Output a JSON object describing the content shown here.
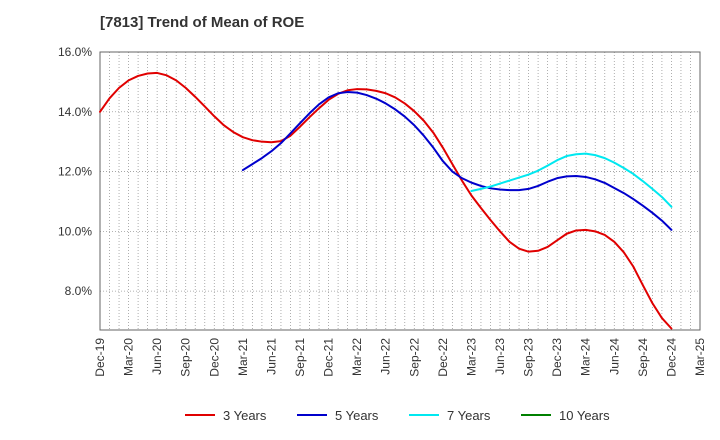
{
  "chart_data": {
    "type": "line",
    "title": "[7813]  Trend of Mean of ROE",
    "xlabel": "",
    "ylabel": "",
    "y_unit": "%",
    "ylim": [
      6.7,
      16.0
    ],
    "y_ticks": [
      8.0,
      10.0,
      12.0,
      14.0,
      16.0
    ],
    "y_tick_labels": [
      "8.0%",
      "10.0%",
      "12.0%",
      "14.0%",
      "16.0%"
    ],
    "grid": "dotted",
    "legend_position": "bottom",
    "categories": [
      "Dec-19",
      "Mar-20",
      "Jun-20",
      "Sep-20",
      "Dec-20",
      "Mar-21",
      "Jun-21",
      "Sep-21",
      "Dec-21",
      "Mar-22",
      "Jun-22",
      "Sep-22",
      "Dec-22",
      "Mar-23",
      "Jun-23",
      "Sep-23",
      "Dec-23",
      "Mar-24",
      "Jun-24",
      "Sep-24",
      "Dec-24",
      "Mar-25"
    ],
    "series": [
      {
        "name": "3 Years",
        "color": "#e00000",
        "x": [
          "Dec-19",
          "Jan-20",
          "Feb-20",
          "Mar-20",
          "Apr-20",
          "May-20",
          "Jun-20",
          "Jul-20",
          "Aug-20",
          "Sep-20",
          "Oct-20",
          "Nov-20",
          "Dec-20",
          "Jan-21",
          "Feb-21",
          "Mar-21",
          "Apr-21",
          "May-21",
          "Jun-21",
          "Jul-21",
          "Aug-21",
          "Sep-21",
          "Oct-21",
          "Nov-21",
          "Dec-21",
          "Jan-22",
          "Feb-22",
          "Mar-22",
          "Apr-22",
          "May-22",
          "Jun-22",
          "Jul-22",
          "Aug-22",
          "Sep-22",
          "Oct-22",
          "Nov-22",
          "Dec-22",
          "Jan-23",
          "Feb-23",
          "Mar-23",
          "Apr-23",
          "May-23",
          "Jun-23",
          "Jul-23",
          "Aug-23",
          "Sep-23",
          "Oct-23",
          "Nov-23",
          "Dec-23",
          "Jan-24",
          "Feb-24",
          "Mar-24",
          "Apr-24",
          "May-24",
          "Jun-24",
          "Jul-24",
          "Aug-24",
          "Sep-24",
          "Oct-24",
          "Nov-24",
          "Dec-24"
        ],
        "values": [
          14.0,
          14.45,
          14.8,
          15.05,
          15.2,
          15.28,
          15.3,
          15.22,
          15.05,
          14.8,
          14.5,
          14.18,
          13.85,
          13.55,
          13.32,
          13.15,
          13.05,
          13.0,
          12.98,
          13.02,
          13.2,
          13.5,
          13.82,
          14.12,
          14.4,
          14.6,
          14.72,
          14.76,
          14.75,
          14.7,
          14.62,
          14.48,
          14.28,
          14.02,
          13.7,
          13.3,
          12.8,
          12.25,
          11.7,
          11.2,
          10.78,
          10.38,
          10.0,
          9.65,
          9.42,
          9.32,
          9.35,
          9.48,
          9.7,
          9.92,
          10.03,
          10.05,
          10.0,
          9.88,
          9.65,
          9.3,
          8.82,
          8.2,
          7.6,
          7.1,
          6.75
        ]
      },
      {
        "name": "5 Years",
        "color": "#0000cc",
        "x": [
          "Mar-21",
          "Apr-21",
          "May-21",
          "Jun-21",
          "Jul-21",
          "Aug-21",
          "Sep-21",
          "Oct-21",
          "Nov-21",
          "Dec-21",
          "Jan-22",
          "Feb-22",
          "Mar-22",
          "Apr-22",
          "May-22",
          "Jun-22",
          "Jul-22",
          "Aug-22",
          "Sep-22",
          "Oct-22",
          "Nov-22",
          "Dec-22",
          "Jan-23",
          "Feb-23",
          "Mar-23",
          "Apr-23",
          "May-23",
          "Jun-23",
          "Jul-23",
          "Aug-23",
          "Sep-23",
          "Oct-23",
          "Nov-23",
          "Dec-23",
          "Jan-24",
          "Feb-24",
          "Mar-24",
          "Apr-24",
          "May-24",
          "Jun-24",
          "Jul-24",
          "Aug-24",
          "Sep-24",
          "Oct-24",
          "Nov-24",
          "Dec-24"
        ],
        "values": [
          12.05,
          12.25,
          12.45,
          12.68,
          12.95,
          13.28,
          13.62,
          13.95,
          14.25,
          14.48,
          14.62,
          14.66,
          14.64,
          14.56,
          14.44,
          14.28,
          14.08,
          13.84,
          13.55,
          13.2,
          12.8,
          12.35,
          12.0,
          11.78,
          11.63,
          11.52,
          11.44,
          11.4,
          11.38,
          11.38,
          11.42,
          11.52,
          11.66,
          11.78,
          11.84,
          11.85,
          11.82,
          11.74,
          11.62,
          11.45,
          11.28,
          11.08,
          10.86,
          10.62,
          10.36,
          10.05
        ]
      },
      {
        "name": "7 Years",
        "color": "#00e8f0",
        "x": [
          "Mar-23",
          "Apr-23",
          "May-23",
          "Jun-23",
          "Jul-23",
          "Aug-23",
          "Sep-23",
          "Oct-23",
          "Nov-23",
          "Dec-23",
          "Jan-24",
          "Feb-24",
          "Mar-24",
          "Apr-24",
          "May-24",
          "Jun-24",
          "Jul-24",
          "Aug-24",
          "Sep-24",
          "Oct-24",
          "Nov-24",
          "Dec-24"
        ],
        "values": [
          11.35,
          11.42,
          11.5,
          11.6,
          11.7,
          11.8,
          11.9,
          12.03,
          12.2,
          12.38,
          12.52,
          12.58,
          12.6,
          12.55,
          12.45,
          12.3,
          12.12,
          11.92,
          11.68,
          11.42,
          11.15,
          10.82
        ]
      },
      {
        "name": "10 Years",
        "color": "#008000",
        "x": [],
        "values": []
      }
    ]
  }
}
